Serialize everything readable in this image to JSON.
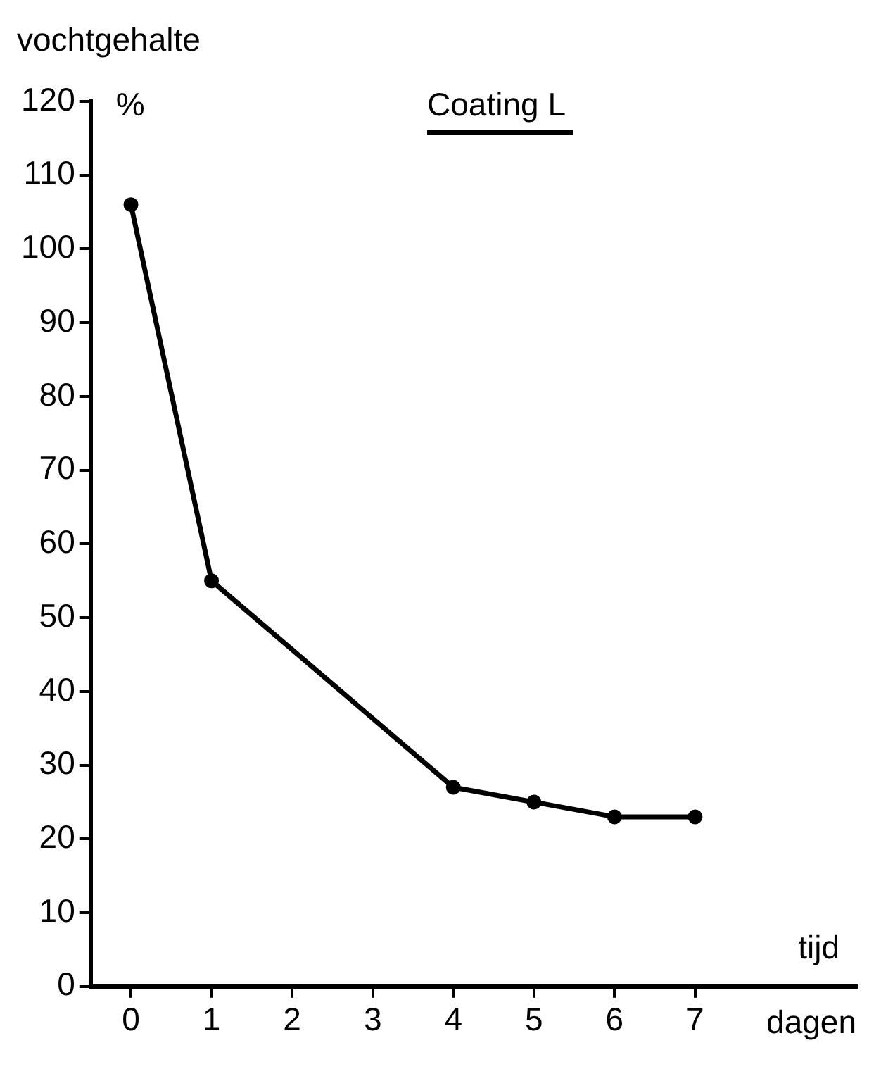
{
  "chart_data": {
    "type": "line",
    "title": "Coating L",
    "ylabel": "vochtgehalte",
    "xlabel": "tijd",
    "annotations": [
      "%",
      "dagen"
    ],
    "x": [
      0,
      1,
      4,
      5,
      6,
      7
    ],
    "series": [
      {
        "color": "#000000",
        "values": [
          106,
          55,
          27,
          25,
          23,
          23
        ]
      }
    ],
    "xlim": [
      -0.5,
      9
    ],
    "xticks": [
      0,
      1,
      2,
      3,
      4,
      5,
      6,
      7
    ],
    "ylim": [
      0,
      120
    ],
    "yticks": [
      0,
      10,
      20,
      30,
      40,
      50,
      60,
      70,
      80,
      90,
      100,
      110,
      120
    ],
    "grid": false,
    "legend": false,
    "marker": "circle",
    "line_style": "solid"
  }
}
